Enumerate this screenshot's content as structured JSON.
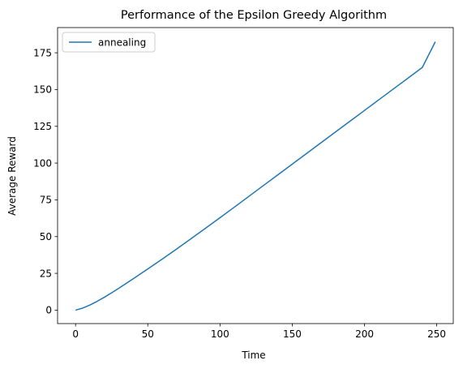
{
  "chart_data": {
    "type": "line",
    "title": "Performance of the Epsilon Greedy Algorithm",
    "xlabel": "Time",
    "ylabel": "Average Reward",
    "xlim": [
      -12.45,
      261.45
    ],
    "ylim": [
      -9.15,
      192.15
    ],
    "xticks": [
      0,
      50,
      100,
      150,
      200,
      250
    ],
    "yticks": [
      0,
      25,
      50,
      75,
      100,
      125,
      150,
      175
    ],
    "grid": false,
    "legend_position": "upper left",
    "series": [
      {
        "name": "annealing",
        "color": "#1f77b4",
        "x": [
          0,
          5,
          10,
          15,
          20,
          25,
          30,
          40,
          50,
          60,
          70,
          80,
          90,
          100,
          110,
          120,
          130,
          140,
          150,
          160,
          170,
          180,
          190,
          200,
          210,
          220,
          230,
          240,
          249
        ],
        "y": [
          0,
          1.4,
          3.5,
          6.0,
          8.8,
          11.8,
          14.9,
          21.4,
          28.0,
          34.7,
          41.6,
          48.6,
          55.7,
          62.9,
          70.1,
          77.4,
          84.7,
          92.0,
          99.3,
          106.6,
          113.9,
          121.2,
          128.5,
          135.8,
          143.1,
          150.4,
          157.7,
          165.0,
          182.5
        ]
      }
    ]
  }
}
